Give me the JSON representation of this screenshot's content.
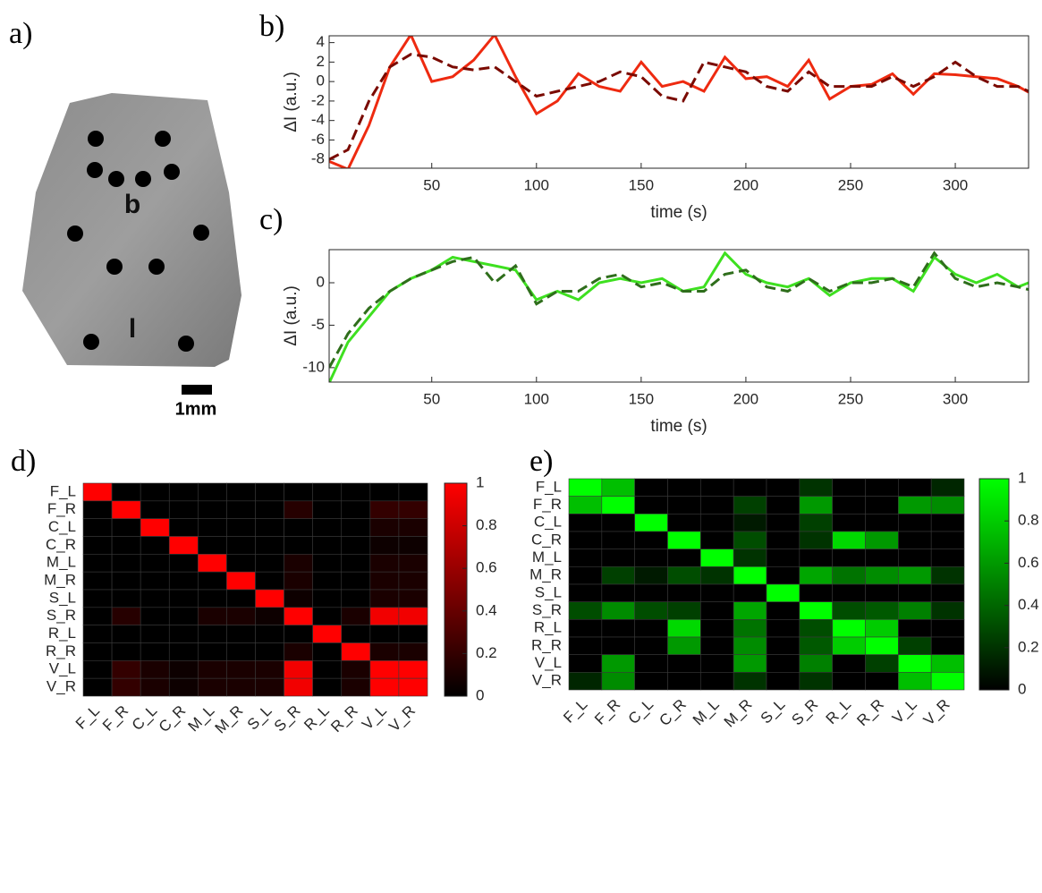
{
  "panel_a": {
    "label": "a)",
    "annotations": [
      "b",
      "l"
    ],
    "scale_bar": "1mm"
  },
  "chart_data": [
    {
      "type": "line",
      "panel_label": "b)",
      "ylabel": "ΔI (a.u.)",
      "xlabel": "time (s)",
      "x": [
        1,
        10,
        20,
        30,
        40,
        50,
        60,
        70,
        80,
        90,
        100,
        110,
        120,
        130,
        140,
        150,
        160,
        170,
        180,
        190,
        200,
        210,
        220,
        230,
        240,
        250,
        260,
        270,
        280,
        290,
        300,
        310,
        320,
        330,
        335
      ],
      "xlim": [
        1,
        335
      ],
      "ylim": [
        -8.9,
        4.7
      ],
      "xticks": [
        50,
        100,
        150,
        200,
        250,
        300
      ],
      "yticks": [
        -8,
        -6,
        -4,
        -2,
        0,
        2,
        4
      ],
      "series": [
        {
          "color": "#ee2a10",
          "dashed": false,
          "values": [
            -8.2,
            -9,
            -4.5,
            1.5,
            4.8,
            0,
            0.5,
            2.2,
            4.8,
            0.5,
            -3.3,
            -2,
            0.8,
            -0.5,
            -1,
            2,
            -0.5,
            0,
            -1,
            2.5,
            0.3,
            0.5,
            -0.5,
            2.2,
            -1.8,
            -0.5,
            -0.3,
            0.8,
            -1.3,
            0.8,
            0.7,
            0.5,
            0.3,
            -0.5,
            -1.1
          ]
        },
        {
          "color": "#7a0a00",
          "dashed": true,
          "values": [
            -8,
            -7,
            -2,
            1.5,
            2.8,
            2.5,
            1.5,
            1.2,
            1.5,
            0,
            -1.5,
            -1,
            -0.5,
            0,
            1,
            0.5,
            -1.5,
            -2,
            2,
            1.5,
            1,
            -0.5,
            -1,
            1,
            -0.5,
            -0.5,
            -0.5,
            0.5,
            -0.5,
            0.5,
            2,
            0.5,
            -0.5,
            -0.5,
            -1
          ]
        }
      ]
    },
    {
      "type": "line",
      "panel_label": "c)",
      "ylabel": "ΔI (a.u.)",
      "xlabel": "time (s)",
      "x": [
        1,
        10,
        20,
        30,
        40,
        50,
        60,
        70,
        80,
        90,
        100,
        110,
        120,
        130,
        140,
        150,
        160,
        170,
        180,
        190,
        200,
        210,
        220,
        230,
        240,
        250,
        260,
        270,
        280,
        290,
        300,
        310,
        320,
        330,
        335
      ],
      "xlim": [
        1,
        335
      ],
      "ylim": [
        -11.7,
        3.9
      ],
      "xticks": [
        50,
        100,
        150,
        200,
        250,
        300
      ],
      "yticks": [
        -10,
        -5,
        0
      ],
      "series": [
        {
          "color": "#3ee020",
          "dashed": false,
          "values": [
            -11.8,
            -7,
            -4,
            -1,
            0.5,
            1.5,
            3,
            2.5,
            2,
            1.5,
            -2,
            -1,
            -2,
            0,
            0.5,
            0,
            0.5,
            -1,
            -0.5,
            3.5,
            1,
            0,
            -0.5,
            0.5,
            -1.5,
            0,
            0.5,
            0.5,
            -1,
            3,
            1,
            0,
            1,
            -0.5,
            0
          ]
        },
        {
          "color": "#2f6e1c",
          "dashed": true,
          "values": [
            -10,
            -6,
            -3,
            -1,
            0.5,
            1.5,
            2.5,
            3,
            0,
            2,
            -2.5,
            -1,
            -1,
            0.5,
            1,
            -0.5,
            0,
            -1,
            -1,
            1,
            1.5,
            -0.5,
            -1,
            0.5,
            -1,
            0,
            0,
            0.5,
            -0.5,
            3.5,
            0.5,
            -0.5,
            0,
            -0.5,
            -0.8
          ]
        }
      ]
    },
    {
      "type": "heatmap",
      "panel_label": "d)",
      "categories": [
        "F_L",
        "F_R",
        "C_L",
        "C_R",
        "M_L",
        "M_R",
        "S_L",
        "S_R",
        "R_L",
        "R_R",
        "V_L",
        "V_R"
      ],
      "colormap": [
        "#000000",
        "#ff0000"
      ],
      "clim": [
        0,
        1
      ],
      "cticks": [
        0,
        0.2,
        0.4,
        0.6,
        0.8,
        1
      ],
      "values": [
        [
          1,
          0,
          0,
          0,
          0,
          0,
          0,
          0,
          0,
          0,
          0,
          0
        ],
        [
          0,
          1,
          0,
          0,
          0,
          0,
          0,
          0.15,
          0,
          0,
          0.2,
          0.2
        ],
        [
          0,
          0,
          1,
          0,
          0,
          0,
          0,
          0,
          0,
          0,
          0.1,
          0.1
        ],
        [
          0,
          0,
          0,
          1,
          0,
          0,
          0,
          0,
          0,
          0,
          0.05,
          0.05
        ],
        [
          0,
          0,
          0,
          0,
          1,
          0,
          0,
          0.1,
          0,
          0,
          0.1,
          0.1
        ],
        [
          0,
          0,
          0,
          0,
          0,
          1,
          0,
          0.1,
          0,
          0,
          0.1,
          0.1
        ],
        [
          0,
          0,
          0,
          0,
          0,
          0,
          1,
          0.05,
          0,
          0,
          0.1,
          0.1
        ],
        [
          0,
          0.15,
          0,
          0,
          0.1,
          0.1,
          0.05,
          1,
          0,
          0.1,
          0.95,
          0.95
        ],
        [
          0,
          0,
          0,
          0,
          0,
          0,
          0,
          0,
          1,
          0,
          0,
          0
        ],
        [
          0,
          0,
          0,
          0,
          0,
          0,
          0,
          0.1,
          0,
          1,
          0.1,
          0.1
        ],
        [
          0,
          0.2,
          0.1,
          0.05,
          0.1,
          0.1,
          0.1,
          0.95,
          0,
          0.1,
          1,
          1
        ],
        [
          0,
          0.2,
          0.1,
          0.05,
          0.1,
          0.1,
          0.1,
          0.95,
          0,
          0.1,
          1,
          1
        ]
      ]
    },
    {
      "type": "heatmap",
      "panel_label": "e)",
      "categories": [
        "F_L",
        "F_R",
        "C_L",
        "C_R",
        "M_L",
        "M_R",
        "S_L",
        "S_R",
        "R_L",
        "R_R",
        "V_L",
        "V_R"
      ],
      "colormap": [
        "#000000",
        "#00ff00"
      ],
      "clim": [
        0,
        1
      ],
      "cticks": [
        0,
        0.2,
        0.4,
        0.6,
        0.8,
        1
      ],
      "values": [
        [
          1,
          0.75,
          0,
          0,
          0,
          0,
          0,
          0.2,
          0,
          0,
          0,
          0.15
        ],
        [
          0.75,
          1,
          0,
          0,
          0,
          0.25,
          0,
          0.6,
          0,
          0,
          0.6,
          0.55
        ],
        [
          0,
          0,
          1,
          0,
          0,
          0.1,
          0,
          0.25,
          0,
          0,
          0,
          0
        ],
        [
          0,
          0,
          0,
          1,
          0,
          0.3,
          0,
          0.2,
          0.85,
          0.6,
          0,
          0
        ],
        [
          0,
          0,
          0,
          0,
          1,
          0.2,
          0,
          0,
          0,
          0,
          0,
          0
        ],
        [
          0,
          0.25,
          0.1,
          0.3,
          0.2,
          1,
          0,
          0.65,
          0.45,
          0.55,
          0.6,
          0.2
        ],
        [
          0,
          0,
          0,
          0,
          0,
          0,
          1,
          0,
          0,
          0,
          0,
          0
        ],
        [
          0.3,
          0.55,
          0.3,
          0.25,
          0,
          0.65,
          0,
          1,
          0.3,
          0.35,
          0.5,
          0.2
        ],
        [
          0,
          0,
          0,
          0.85,
          0,
          0.45,
          0,
          0.3,
          1,
          0.8,
          0,
          0
        ],
        [
          0,
          0,
          0,
          0.6,
          0,
          0.55,
          0,
          0.35,
          0.8,
          1,
          0.25,
          0
        ],
        [
          0,
          0.6,
          0,
          0,
          0,
          0.6,
          0,
          0.5,
          0,
          0.25,
          1,
          0.75
        ],
        [
          0.15,
          0.55,
          0,
          0,
          0,
          0.2,
          0,
          0.2,
          0,
          0,
          0.75,
          1
        ]
      ]
    }
  ]
}
